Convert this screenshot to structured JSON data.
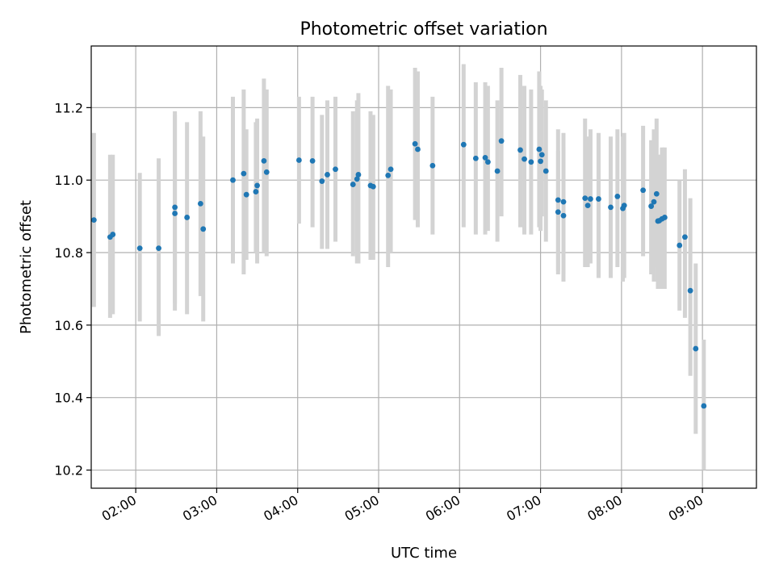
{
  "chart_data": {
    "type": "scatter",
    "title": "Photometric offset variation",
    "xlabel": "UTC time",
    "ylabel": "Photometric offset",
    "x_is_time": true,
    "xlim": [
      "01:27",
      "09:40"
    ],
    "ylim": [
      10.15,
      11.37
    ],
    "grid": true,
    "x_ticks": [
      "02:00",
      "03:00",
      "04:00",
      "05:00",
      "06:00",
      "07:00",
      "08:00",
      "09:00"
    ],
    "y_ticks": [
      "10.2",
      "10.4",
      "10.6",
      "10.8",
      "11.0",
      "11.2"
    ],
    "colors": {
      "point": "#1f77b4",
      "errorbar": "#d3d3d3",
      "grid": "#b0b0b0"
    },
    "series": [
      {
        "x": [
          "01:29",
          "01:41",
          "01:43",
          "02:03",
          "02:17",
          "02:29",
          "02:29",
          "02:38",
          "02:48",
          "02:50",
          "03:12",
          "03:20",
          "03:22",
          "03:29",
          "03:30",
          "03:35",
          "03:37",
          "04:01",
          "04:11",
          "04:18",
          "04:22",
          "04:28",
          "04:41",
          "04:44",
          "04:45",
          "04:54",
          "04:56",
          "05:07",
          "05:09",
          "05:27",
          "05:29",
          "05:40",
          "06:03",
          "06:12",
          "06:19",
          "06:21",
          "06:28",
          "06:31",
          "06:45",
          "06:48",
          "06:53",
          "06:59",
          "07:00",
          "07:01",
          "07:04",
          "07:13",
          "07:13",
          "07:17",
          "07:17",
          "07:33",
          "07:35",
          "07:37",
          "07:43",
          "07:52",
          "07:57",
          "08:01",
          "08:02",
          "08:16",
          "08:22",
          "08:24",
          "08:26",
          "08:27",
          "08:28",
          "08:30",
          "08:32",
          "08:43",
          "08:47",
          "08:51",
          "08:55",
          "09:01"
        ],
        "y": [
          10.89,
          10.843,
          10.85,
          10.812,
          10.812,
          10.925,
          10.908,
          10.897,
          10.935,
          10.865,
          11.0,
          11.018,
          10.96,
          10.968,
          10.985,
          11.053,
          11.022,
          11.055,
          11.053,
          10.997,
          11.015,
          11.03,
          10.988,
          11.003,
          11.015,
          10.985,
          10.982,
          11.013,
          11.03,
          11.1,
          11.085,
          11.04,
          11.098,
          11.06,
          11.062,
          11.05,
          11.025,
          11.108,
          11.083,
          11.058,
          11.05,
          11.085,
          11.052,
          11.07,
          11.025,
          10.912,
          10.945,
          10.94,
          10.902,
          10.95,
          10.93,
          10.948,
          10.948,
          10.925,
          10.955,
          10.922,
          10.93,
          10.972,
          10.928,
          10.94,
          10.962,
          10.887,
          10.888,
          10.893,
          10.897,
          10.82,
          10.843,
          10.695,
          10.535,
          10.377
        ],
        "err_low": [
          10.65,
          10.62,
          10.63,
          10.61,
          10.57,
          10.66,
          10.64,
          10.63,
          10.68,
          10.61,
          10.77,
          10.74,
          10.78,
          10.8,
          10.77,
          10.8,
          10.79,
          10.88,
          10.87,
          10.81,
          10.81,
          10.83,
          10.79,
          10.77,
          10.77,
          10.78,
          10.78,
          10.76,
          10.8,
          10.89,
          10.87,
          10.85,
          10.87,
          10.85,
          10.85,
          10.86,
          10.83,
          10.9,
          10.87,
          10.85,
          10.85,
          10.87,
          10.86,
          10.9,
          10.83,
          10.74,
          10.75,
          10.74,
          10.72,
          10.76,
          10.76,
          10.77,
          10.73,
          10.73,
          10.76,
          10.72,
          10.73,
          10.79,
          10.74,
          10.72,
          10.76,
          10.7,
          10.71,
          10.7,
          10.7,
          10.64,
          10.62,
          10.46,
          10.3,
          10.2
        ],
        "err_high": [
          11.13,
          11.07,
          11.07,
          11.02,
          11.06,
          11.19,
          11.18,
          11.16,
          11.19,
          11.12,
          11.23,
          11.25,
          11.14,
          11.16,
          11.17,
          11.28,
          11.25,
          11.23,
          11.23,
          11.18,
          11.22,
          11.23,
          11.19,
          11.22,
          11.24,
          11.19,
          11.18,
          11.26,
          11.25,
          11.31,
          11.3,
          11.23,
          11.32,
          11.27,
          11.27,
          11.26,
          11.22,
          11.31,
          11.29,
          11.26,
          11.25,
          11.3,
          11.26,
          11.25,
          11.22,
          11.08,
          11.14,
          11.13,
          11.09,
          11.17,
          11.12,
          11.14,
          11.13,
          11.12,
          11.14,
          11.12,
          11.13,
          11.15,
          11.11,
          11.14,
          11.17,
          11.07,
          11.07,
          11.09,
          11.09,
          11.0,
          11.03,
          10.95,
          10.77,
          10.56
        ]
      }
    ]
  }
}
